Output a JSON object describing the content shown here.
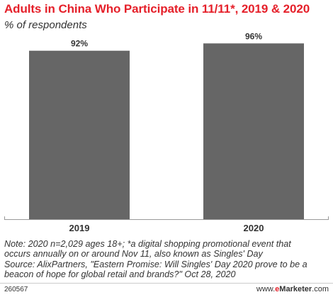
{
  "chart_data": {
    "type": "bar",
    "title": "Adults in China Who Participate in 11/11*, 2019 & 2020",
    "subtitle": "% of respondents",
    "categories": [
      "2019",
      "2020"
    ],
    "values": [
      92,
      96
    ],
    "value_labels": [
      "92%",
      "96%"
    ],
    "ylim": [
      0,
      100
    ],
    "grid": false,
    "bar_color": "#666666"
  },
  "note": {
    "line1": "Note: 2020 n=2,029 ages 18+; *a digital shopping promotional event that",
    "line2": "occurs annually on or around Nov 11, also known as Singles' Day",
    "line3": "Source: AlixPartners, \"Eastern Promise: Will Singles' Day 2020 prove to be a",
    "line4": "beacon of hope for global retail and brands?\" Oct 28, 2020"
  },
  "footer": {
    "chart_id": "260567",
    "brand_prefix": "www.",
    "brand_e": "e",
    "brand_name": "Marketer",
    "brand_suffix": ".com"
  },
  "colors": {
    "title": "#e5202a",
    "text": "#333333",
    "bar": "#666666",
    "axis": "#999999"
  }
}
